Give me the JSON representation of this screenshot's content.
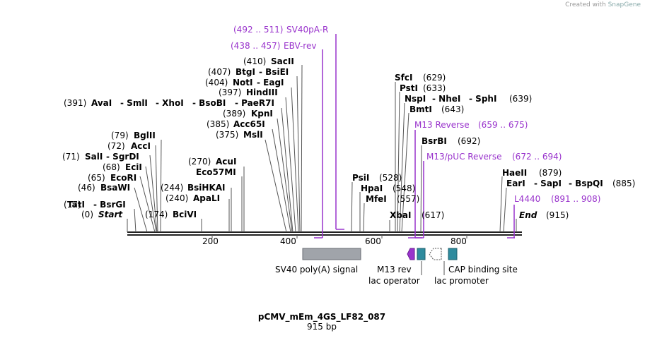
{
  "credit": {
    "prefix": "Created with",
    "brand": "SnapGene"
  },
  "title": "pCMV_mEm_4GS_LF82_087",
  "length_label": "915 bp",
  "axis_ticks": [
    "200",
    "400",
    "600",
    "800"
  ],
  "colors": {
    "primer": "#9933cc",
    "feature_gray": "#a0a4aa",
    "feature_teal": "#2e8b9e"
  },
  "sites": [
    {
      "pos": "(0)",
      "name": "Start",
      "italic": true
    },
    {
      "pos": "(17)",
      "name": "TatI",
      "extra": [
        "BsrGI"
      ]
    },
    {
      "pos": "(46)",
      "name": "BsaWI"
    },
    {
      "pos": "(65)",
      "name": "EcoRI"
    },
    {
      "pos": "(68)",
      "name": "EciI"
    },
    {
      "pos": "(71)",
      "name": "SalI",
      "extra": [
        "SgrDI"
      ]
    },
    {
      "pos": "(72)",
      "name": "AccI"
    },
    {
      "pos": "(79)",
      "name": "BglII"
    },
    {
      "pos": "(174)",
      "name": "BciVI"
    },
    {
      "pos": "(240)",
      "name": "ApaLI"
    },
    {
      "pos": "(244)",
      "name": "BsiHKAI"
    },
    {
      "pos": "",
      "name": "Eco57MI"
    },
    {
      "pos": "(270)",
      "name": "AcuI"
    },
    {
      "pos": "(375)",
      "name": "MslI"
    },
    {
      "pos": "(385)",
      "name": "Acc65I"
    },
    {
      "pos": "(389)",
      "name": "KpnI"
    },
    {
      "pos": "(391)",
      "name": "AvaI",
      "extra": [
        "SmlI",
        "XhoI",
        "BsoBI",
        "PaeR7I"
      ]
    },
    {
      "pos": "(397)",
      "name": "HindIII"
    },
    {
      "pos": "(404)",
      "name": "NotI",
      "extra": [
        "EagI"
      ]
    },
    {
      "pos": "(407)",
      "name": "BtgI",
      "extra": [
        "BsiEI"
      ]
    },
    {
      "pos": "(410)",
      "name": "SacII"
    },
    {
      "pos": "(528)",
      "name": "PsiI"
    },
    {
      "pos": "(548)",
      "name": "HpaI"
    },
    {
      "pos": "(557)",
      "name": "MfeI"
    },
    {
      "pos": "(617)",
      "name": "XbaI"
    },
    {
      "pos": "(629)",
      "name": "SfcI"
    },
    {
      "pos": "(633)",
      "name": "PstI"
    },
    {
      "pos": "(639)",
      "name": "NspI",
      "extra": [
        "NheI",
        "SphI"
      ]
    },
    {
      "pos": "(643)",
      "name": "BmtI"
    },
    {
      "pos": "(692)",
      "name": "BsrBI"
    },
    {
      "pos": "(879)",
      "name": "HaeII"
    },
    {
      "pos": "(885)",
      "name": "EarI",
      "extra": [
        "SapI",
        "BspQI"
      ]
    },
    {
      "pos": "(915)",
      "name": "End",
      "italic": true
    }
  ],
  "primers": [
    {
      "name": "SV40pA-R",
      "range": "(492 .. 511)"
    },
    {
      "name": "EBV-rev",
      "range": "(438 .. 457)"
    },
    {
      "name": "M13 Reverse",
      "range": "(659 .. 675)"
    },
    {
      "name": "M13/pUC Reverse",
      "range": "(672 .. 694)"
    },
    {
      "name": "L4440",
      "range": "(891 .. 908)"
    }
  ],
  "features": [
    {
      "name": "SV40 poly(A) signal"
    },
    {
      "name": "M13 rev"
    },
    {
      "name": "lac operator"
    },
    {
      "name": "lac promoter"
    },
    {
      "name": "CAP binding site"
    }
  ]
}
